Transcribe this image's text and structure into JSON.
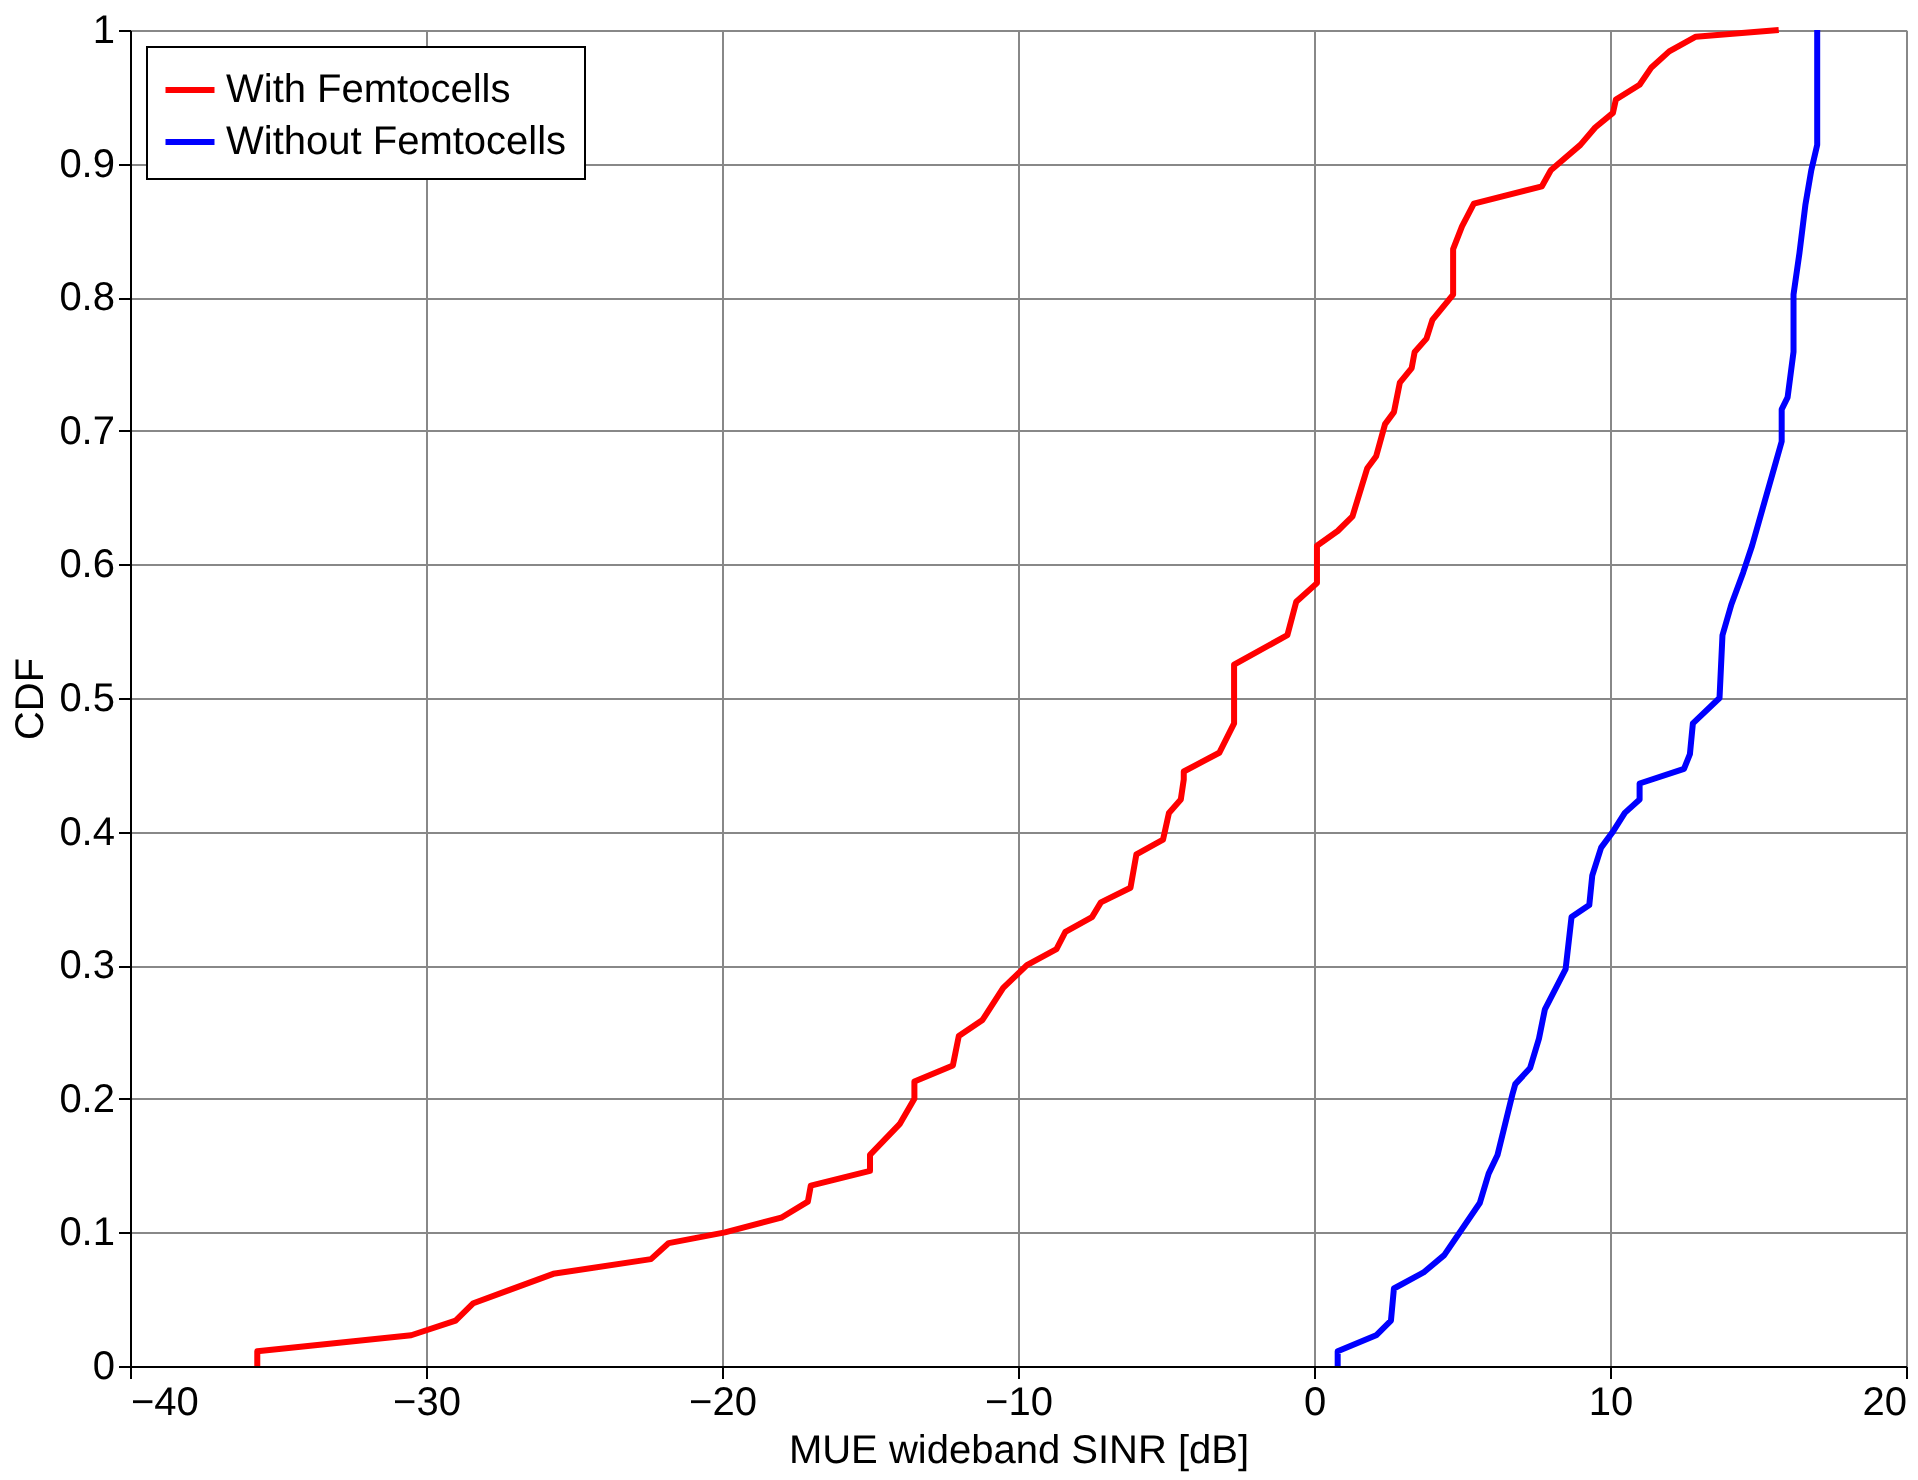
{
  "chart_data": {
    "type": "line",
    "xlabel": "MUE wideband SINR [dB]",
    "ylabel": "CDF",
    "xlim": [
      -40,
      20
    ],
    "xticks": [
      -40,
      -30,
      -20,
      -10,
      0,
      10,
      20
    ],
    "ylim": [
      0,
      1
    ],
    "yticks": [
      0,
      0.1,
      0.2,
      0.3,
      0.4,
      0.5,
      0.6,
      0.7,
      0.8,
      0.9,
      1
    ],
    "grid": true,
    "legend": "top left",
    "marker": "none",
    "line_style": "solid",
    "series": [
      {
        "name": "With Femtocells",
        "color": "#ff0000",
        "x": [
          -35.7,
          -35.7,
          -30.5,
          -29.0,
          -28.4,
          -25.7,
          -22.4,
          -21.8,
          -19.9,
          -18.0,
          -17.1,
          -17.0,
          -15.0,
          -15.0,
          -14.0,
          -13.5,
          -13.5,
          -12.2,
          -12.0,
          -11.2,
          -10.5,
          -9.7,
          -8.7,
          -8.4,
          -7.5,
          -7.2,
          -6.2,
          -6.0,
          -5.1,
          -4.9,
          -4.5,
          -4.4,
          -4.4,
          -3.2,
          -2.7,
          -2.7,
          -0.9,
          -0.6,
          0.1,
          0.1,
          0.8,
          1.3,
          1.8,
          2.1,
          2.4,
          2.7,
          2.9,
          3.3,
          3.4,
          3.8,
          4.0,
          4.7,
          4.7,
          5.0,
          5.4,
          7.7,
          8.0,
          9.0,
          9.5,
          10.1,
          10.2,
          11.0,
          11.4,
          12.0,
          12.9,
          15.7
        ],
        "values": [
          0,
          0.011,
          0.023,
          0.034,
          0.047,
          0.069,
          0.08,
          0.092,
          0.1,
          0.111,
          0.123,
          0.135,
          0.146,
          0.158,
          0.181,
          0.2,
          0.213,
          0.225,
          0.247,
          0.259,
          0.283,
          0.3,
          0.312,
          0.325,
          0.336,
          0.347,
          0.358,
          0.383,
          0.394,
          0.414,
          0.424,
          0.439,
          0.445,
          0.459,
          0.481,
          0.525,
          0.547,
          0.572,
          0.586,
          0.614,
          0.625,
          0.636,
          0.672,
          0.681,
          0.705,
          0.714,
          0.736,
          0.747,
          0.759,
          0.769,
          0.783,
          0.802,
          0.836,
          0.853,
          0.87,
          0.883,
          0.895,
          0.914,
          0.927,
          0.938,
          0.948,
          0.959,
          0.972,
          0.984,
          0.995,
          1.0
        ]
      },
      {
        "name": "Without Femtocells",
        "color": "#0000ff",
        "x": [
          0.8,
          0.8,
          2.1,
          2.6,
          2.7,
          3.7,
          4.4,
          5.6,
          5.9,
          6.2,
          6.7,
          6.8,
          7.3,
          7.6,
          7.8,
          8.5,
          8.7,
          9.3,
          9.4,
          9.7,
          10.1,
          10.5,
          11.0,
          11.0,
          12.5,
          12.7,
          12.8,
          13.7,
          13.8,
          14.1,
          14.5,
          14.8,
          15.8,
          15.8,
          16.0,
          16.2,
          16.2,
          16.4,
          16.6,
          16.8,
          17.0,
          17.0
        ],
        "values": [
          0,
          0.011,
          0.023,
          0.034,
          0.058,
          0.07,
          0.083,
          0.122,
          0.144,
          0.158,
          0.203,
          0.211,
          0.223,
          0.245,
          0.267,
          0.297,
          0.336,
          0.345,
          0.367,
          0.388,
          0.4,
          0.414,
          0.424,
          0.436,
          0.447,
          0.458,
          0.481,
          0.5,
          0.547,
          0.57,
          0.594,
          0.614,
          0.692,
          0.716,
          0.725,
          0.759,
          0.802,
          0.833,
          0.869,
          0.895,
          0.914,
          1.0
        ]
      }
    ]
  }
}
